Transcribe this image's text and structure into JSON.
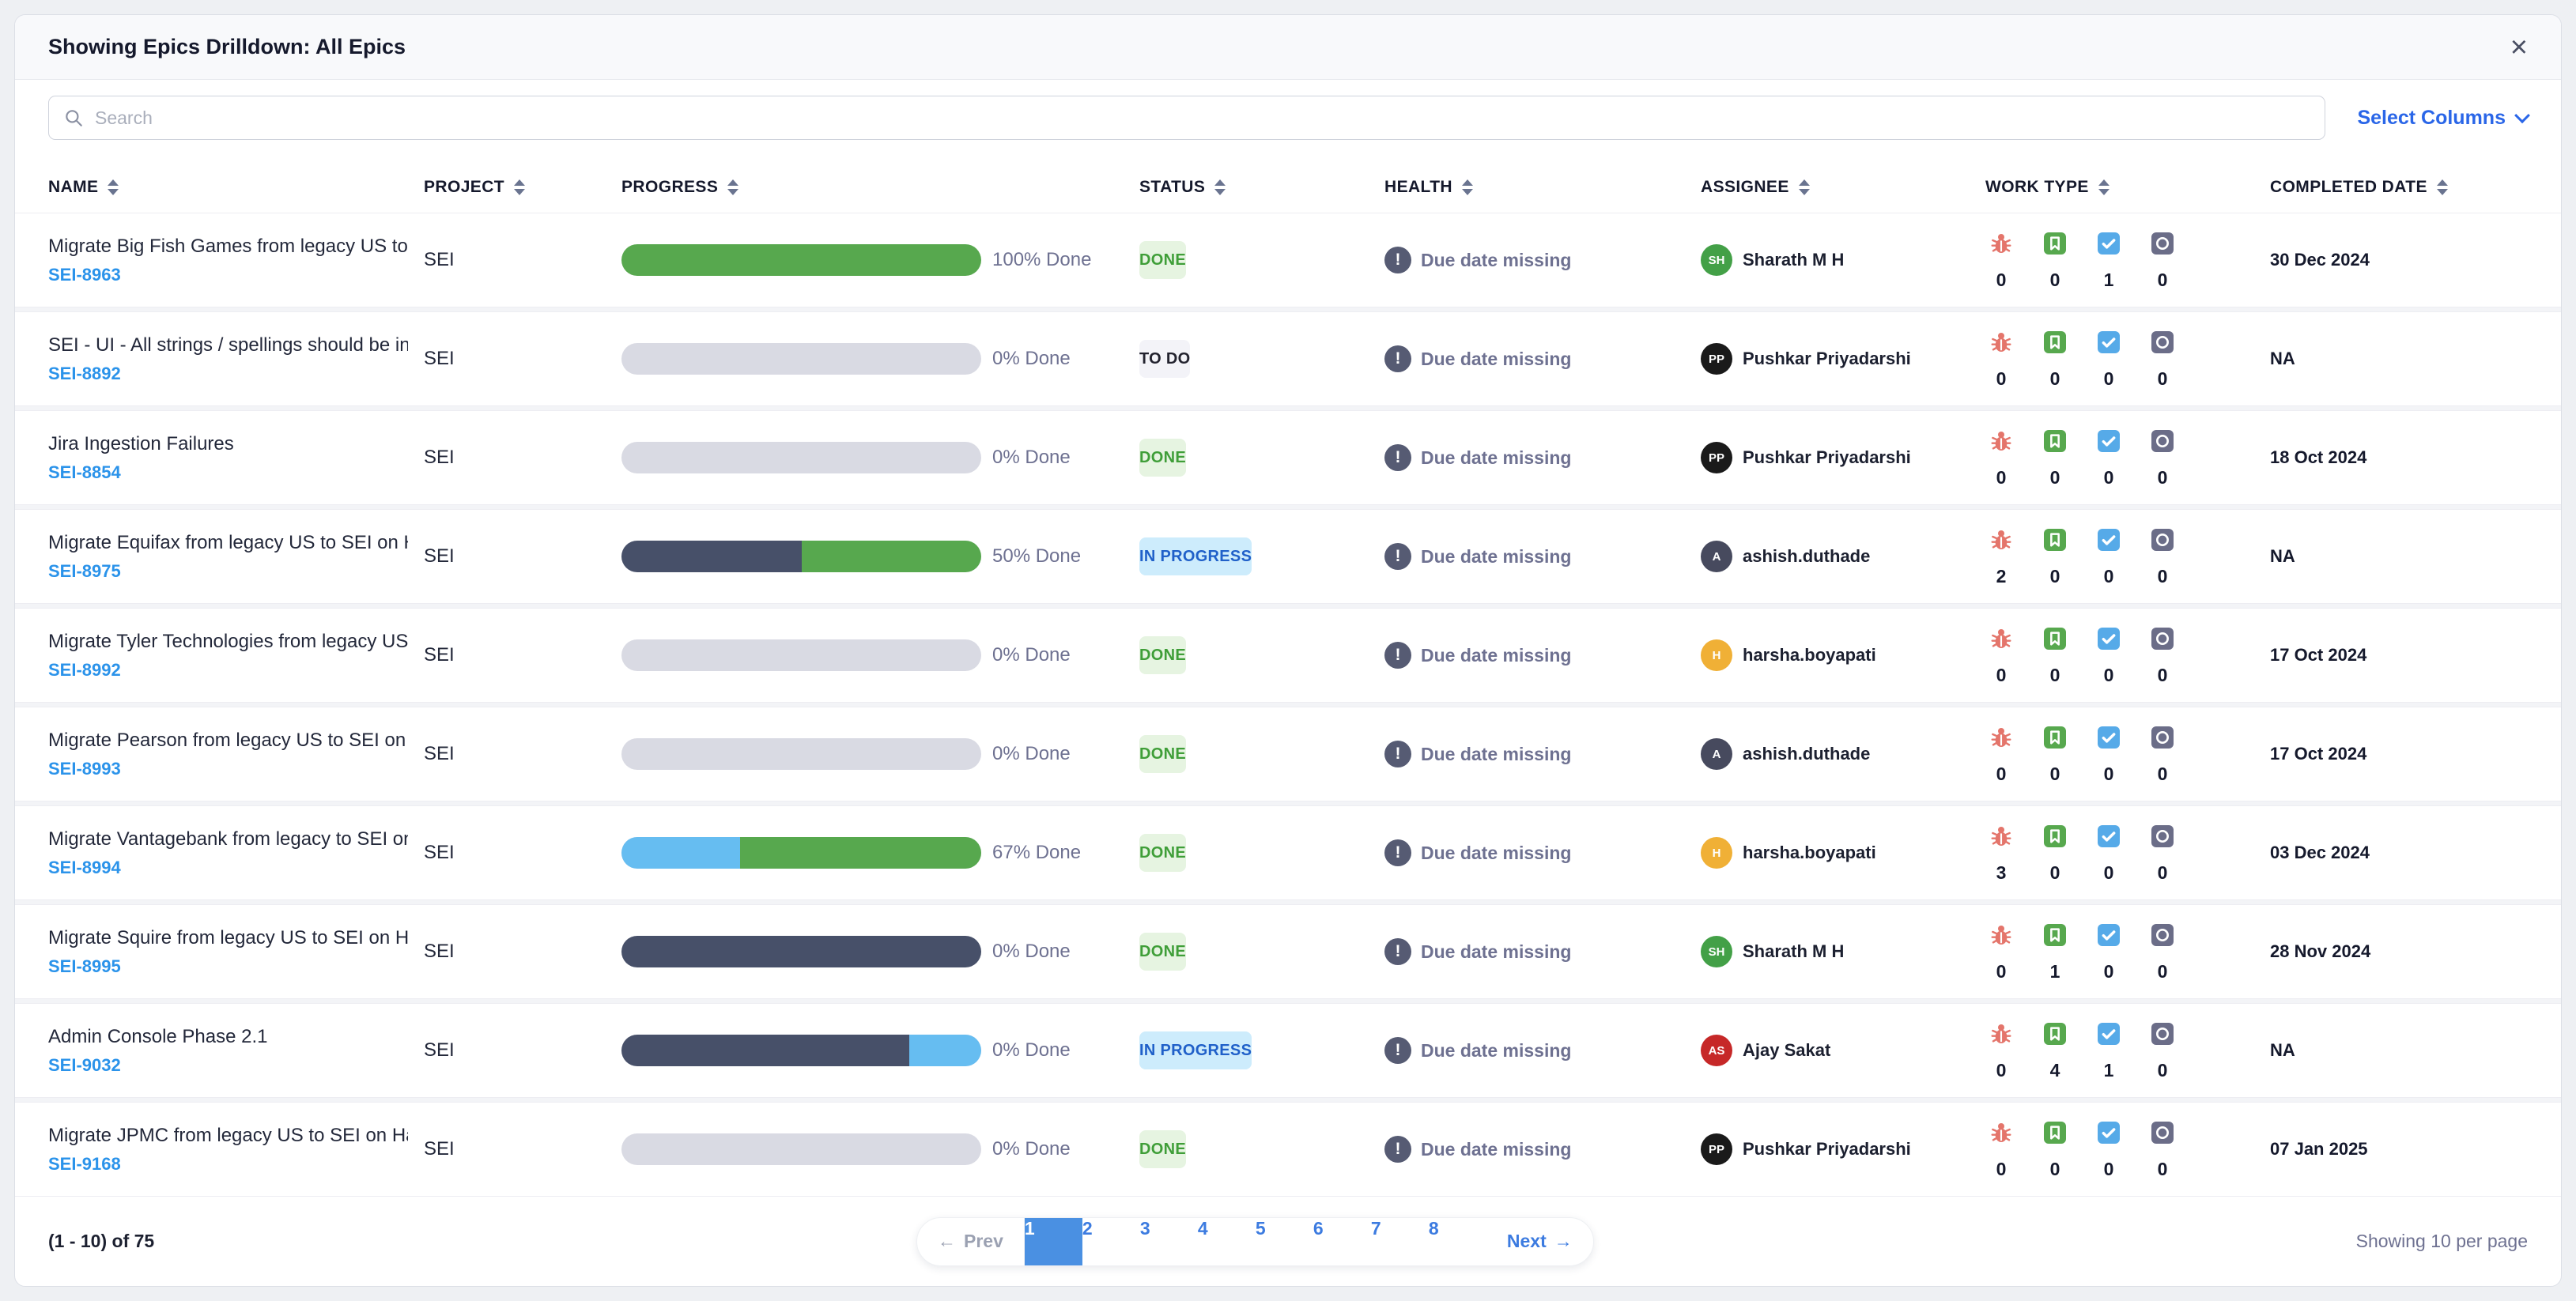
{
  "header": {
    "title": "Showing Epics Drilldown: All Epics",
    "close_icon": "×"
  },
  "toolbar": {
    "search_placeholder": "Search",
    "select_columns_label": "Select Columns"
  },
  "columns": [
    "NAME",
    "PROJECT",
    "PROGRESS",
    "STATUS",
    "HEALTH",
    "ASSIGNEE",
    "WORK TYPE",
    "COMPLETED DATE"
  ],
  "work_type_icons": [
    "bug-icon",
    "story-icon",
    "task-icon",
    "other-icon"
  ],
  "colors": {
    "accent_blue": "#2a66e8",
    "link_blue": "#2b93ea",
    "progress": {
      "track": "#d9dae3",
      "green": "#57a84e",
      "slate": "#475069",
      "lightblue": "#66bdf1"
    },
    "status": {
      "done": {
        "bg": "#e6f4e1",
        "text": "#3f9e38"
      },
      "todo": {
        "bg": "#f3f3f8",
        "text": "#22222e"
      },
      "inprogress": {
        "bg": "#cdecfc",
        "text": "#2060c9"
      }
    },
    "worktype": {
      "bug": "#e4756b",
      "story": "#57a84e",
      "task": "#56aae8",
      "other": "#6b6d88"
    },
    "pagination_active_bg": "#4a90e2"
  },
  "rows": [
    {
      "name": "Migrate Big Fish Games from legacy US to SEI ...",
      "key": "SEI-8963",
      "project": "SEI",
      "progress": {
        "label": "100% Done",
        "segments": [
          {
            "color": "green",
            "pct": 100
          }
        ]
      },
      "status": "DONE",
      "status_type": "done",
      "health": "Due date missing",
      "assignee": {
        "name": "Sharath M H",
        "initials": "SH",
        "color": "#43a047"
      },
      "work_type_counts": [
        0,
        0,
        1,
        0
      ],
      "completed_date": "30 Dec 2024"
    },
    {
      "name": "SEI - UI - All strings / spellings should be in A...",
      "key": "SEI-8892",
      "project": "SEI",
      "progress": {
        "label": "0% Done",
        "segments": []
      },
      "status": "TO DO",
      "status_type": "todo",
      "health": "Due date missing",
      "assignee": {
        "name": "Pushkar Priyadarshi",
        "initials": "PP",
        "color": "#1a1a1a"
      },
      "work_type_counts": [
        0,
        0,
        0,
        0
      ],
      "completed_date": "NA"
    },
    {
      "name": "Jira Ingestion Failures",
      "key": "SEI-8854",
      "project": "SEI",
      "progress": {
        "label": "0% Done",
        "segments": []
      },
      "status": "DONE",
      "status_type": "done",
      "health": "Due date missing",
      "assignee": {
        "name": "Pushkar Priyadarshi",
        "initials": "PP",
        "color": "#1a1a1a"
      },
      "work_type_counts": [
        0,
        0,
        0,
        0
      ],
      "completed_date": "18 Oct 2024"
    },
    {
      "name": "Migrate Equifax from legacy US to SEI on Harn...",
      "key": "SEI-8975",
      "project": "SEI",
      "progress": {
        "label": "50% Done",
        "segments": [
          {
            "color": "slate",
            "pct": 50
          },
          {
            "color": "green",
            "pct": 50
          }
        ]
      },
      "status": "IN PROGRESS",
      "status_type": "inprogress",
      "health": "Due date missing",
      "assignee": {
        "name": "ashish.duthade",
        "initials": "A",
        "color": "#474a5e"
      },
      "work_type_counts": [
        2,
        0,
        0,
        0
      ],
      "completed_date": "NA"
    },
    {
      "name": "Migrate Tyler Technologies from legacy US to ...",
      "key": "SEI-8992",
      "project": "SEI",
      "progress": {
        "label": "0% Done",
        "segments": []
      },
      "status": "DONE",
      "status_type": "done",
      "health": "Due date missing",
      "assignee": {
        "name": "harsha.boyapati",
        "initials": "H",
        "color": "#f0b036"
      },
      "work_type_counts": [
        0,
        0,
        0,
        0
      ],
      "completed_date": "17 Oct 2024"
    },
    {
      "name": "Migrate Pearson from legacy US to SEI on Har...",
      "key": "SEI-8993",
      "project": "SEI",
      "progress": {
        "label": "0% Done",
        "segments": []
      },
      "status": "DONE",
      "status_type": "done",
      "health": "Due date missing",
      "assignee": {
        "name": "ashish.duthade",
        "initials": "A",
        "color": "#474a5e"
      },
      "work_type_counts": [
        0,
        0,
        0,
        0
      ],
      "completed_date": "17 Oct 2024"
    },
    {
      "name": "Migrate Vantagebank from legacy to SEI on Ha...",
      "key": "SEI-8994",
      "project": "SEI",
      "progress": {
        "label": "67% Done",
        "segments": [
          {
            "color": "lightblue",
            "pct": 33
          },
          {
            "color": "green",
            "pct": 67
          }
        ]
      },
      "status": "DONE",
      "status_type": "done",
      "health": "Due date missing",
      "assignee": {
        "name": "harsha.boyapati",
        "initials": "H",
        "color": "#f0b036"
      },
      "work_type_counts": [
        3,
        0,
        0,
        0
      ],
      "completed_date": "03 Dec 2024"
    },
    {
      "name": "Migrate Squire from legacy US to SEI on Harne...",
      "key": "SEI-8995",
      "project": "SEI",
      "progress": {
        "label": "0% Done",
        "segments": [
          {
            "color": "slate",
            "pct": 100
          }
        ]
      },
      "status": "DONE",
      "status_type": "done",
      "health": "Due date missing",
      "assignee": {
        "name": "Sharath M H",
        "initials": "SH",
        "color": "#43a047"
      },
      "work_type_counts": [
        0,
        1,
        0,
        0
      ],
      "completed_date": "28 Nov 2024"
    },
    {
      "name": "Admin Console Phase 2.1",
      "key": "SEI-9032",
      "project": "SEI",
      "progress": {
        "label": "0% Done",
        "segments": [
          {
            "color": "slate",
            "pct": 80
          },
          {
            "color": "lightblue",
            "pct": 20
          }
        ]
      },
      "status": "IN PROGRESS",
      "status_type": "inprogress",
      "health": "Due date missing",
      "assignee": {
        "name": "Ajay Sakat",
        "initials": "AS",
        "color": "#c62828"
      },
      "work_type_counts": [
        0,
        4,
        1,
        0
      ],
      "completed_date": "NA"
    },
    {
      "name": "Migrate JPMC from legacy US to SEI on Harne...",
      "key": "SEI-9168",
      "project": "SEI",
      "progress": {
        "label": "0% Done",
        "segments": []
      },
      "status": "DONE",
      "status_type": "done",
      "health": "Due date missing",
      "assignee": {
        "name": "Pushkar Priyadarshi",
        "initials": "PP",
        "color": "#1a1a1a"
      },
      "work_type_counts": [
        0,
        0,
        0,
        0
      ],
      "completed_date": "07 Jan 2025"
    }
  ],
  "footer": {
    "range": "(1 - 10) of 75",
    "prev_label": "Prev",
    "prev_arrow": "←",
    "next_label": "Next",
    "next_arrow": "→",
    "pages": [
      "1",
      "2",
      "3",
      "4",
      "5",
      "6",
      "7",
      "8"
    ],
    "active_page": "1",
    "per_page": "Showing 10 per page"
  }
}
